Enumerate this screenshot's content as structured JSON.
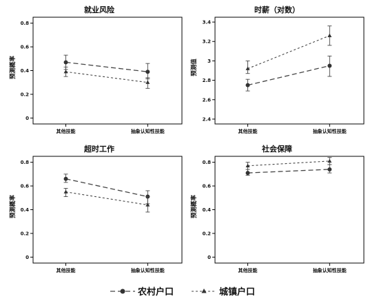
{
  "figure": {
    "legend": [
      {
        "label": "农村户口",
        "marker": "circle",
        "dash": "long-dash"
      },
      {
        "label": "城镇户口",
        "marker": "triangle",
        "dash": "short-dash"
      }
    ],
    "colors": {
      "line": "#444444",
      "marker": "#333333",
      "frame": "#000000",
      "grid": "#ffffff"
    }
  },
  "chart_data": [
    {
      "type": "line",
      "title": "就业风险",
      "ylabel": "预测概率",
      "xlabel": "",
      "categories": [
        "其他技能",
        "抽象认知性技能"
      ],
      "ylim": [
        -0.05,
        0.85
      ],
      "yticks": [
        0,
        0.2,
        0.4,
        0.6,
        0.8
      ],
      "ytick_labels": [
        "0",
        "0.2",
        "0.4",
        "0.6",
        "0.8"
      ],
      "series": [
        {
          "name": "农村户口",
          "values": [
            0.47,
            0.39
          ],
          "lower": [
            0.41,
            0.33
          ],
          "upper": [
            0.53,
            0.46
          ]
        },
        {
          "name": "城镇户口",
          "values": [
            0.39,
            0.3
          ],
          "lower": [
            0.35,
            0.25
          ],
          "upper": [
            0.43,
            0.34
          ]
        }
      ]
    },
    {
      "type": "line",
      "title": "时薪（对数）",
      "ylabel": "预测值",
      "xlabel": "",
      "categories": [
        "其他技能",
        "抽象认知性技能"
      ],
      "ylim": [
        2.35,
        3.45
      ],
      "yticks": [
        2.4,
        2.6,
        2.8,
        3.0,
        3.2,
        3.4
      ],
      "ytick_labels": [
        "2.4",
        "2.6",
        "2.8",
        "3",
        "3.2",
        "3.4"
      ],
      "series": [
        {
          "name": "农村户口",
          "values": [
            2.75,
            2.95
          ],
          "lower": [
            2.69,
            2.84
          ],
          "upper": [
            2.81,
            3.05
          ]
        },
        {
          "name": "城镇户口",
          "values": [
            2.92,
            3.26
          ],
          "lower": [
            2.87,
            3.16
          ],
          "upper": [
            3.0,
            3.36
          ]
        }
      ]
    },
    {
      "type": "line",
      "title": "超时工作",
      "ylabel": "预测概率",
      "xlabel": "",
      "categories": [
        "其他技能",
        "抽象认知性技能"
      ],
      "ylim": [
        -0.05,
        0.85
      ],
      "yticks": [
        0,
        0.2,
        0.4,
        0.6,
        0.8
      ],
      "ytick_labels": [
        "0",
        "0.2",
        "0.4",
        "0.6",
        "0.8"
      ],
      "series": [
        {
          "name": "农村户口",
          "values": [
            0.66,
            0.51
          ],
          "lower": [
            0.63,
            0.45
          ],
          "upper": [
            0.7,
            0.56
          ]
        },
        {
          "name": "城镇户口",
          "values": [
            0.55,
            0.44
          ],
          "lower": [
            0.51,
            0.38
          ],
          "upper": [
            0.58,
            0.51
          ]
        }
      ]
    },
    {
      "type": "line",
      "title": "社会保障",
      "ylabel": "预测概率",
      "xlabel": "",
      "categories": [
        "其他技能",
        "抽象认知性技能"
      ],
      "ylim": [
        -0.05,
        0.85
      ],
      "yticks": [
        0,
        0.2,
        0.4,
        0.6,
        0.8
      ],
      "ytick_labels": [
        "0",
        "0.2",
        "0.4",
        "0.6",
        "0.8"
      ],
      "series": [
        {
          "name": "农村户口",
          "values": [
            0.71,
            0.74
          ],
          "lower": [
            0.69,
            0.71
          ],
          "upper": [
            0.74,
            0.78
          ]
        },
        {
          "name": "城镇户口",
          "values": [
            0.77,
            0.81
          ],
          "lower": [
            0.74,
            0.78
          ],
          "upper": [
            0.8,
            0.84
          ]
        }
      ]
    }
  ]
}
